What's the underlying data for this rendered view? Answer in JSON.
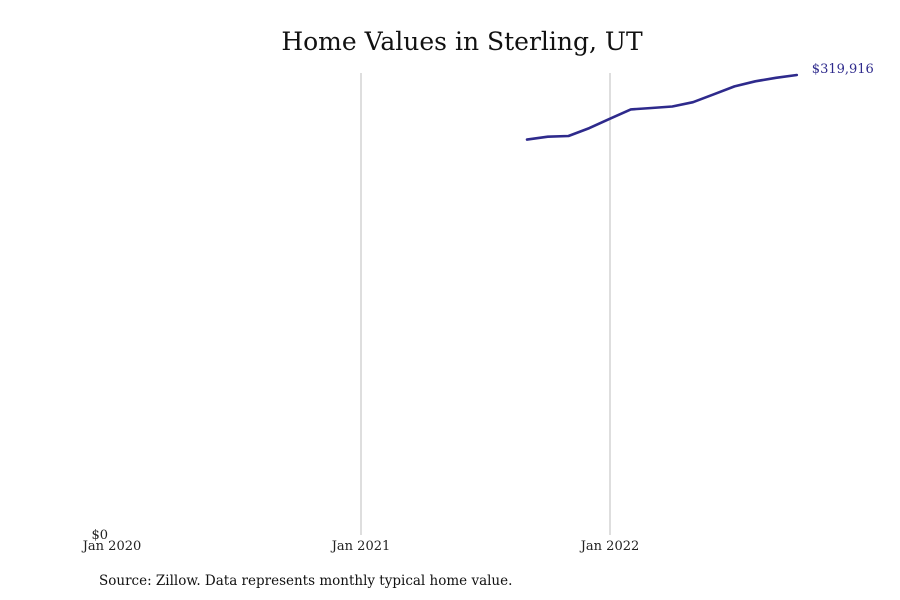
{
  "chart_data": {
    "type": "line",
    "title": "Home Values in Sterling, UT",
    "xlabel": "",
    "ylabel": "",
    "x_ticks": [
      "Jan 2020",
      "Jan 2021",
      "Jan 2022"
    ],
    "y_ticks": [
      "$0"
    ],
    "xlim": [
      "2020-01",
      "2022-12"
    ],
    "ylim": [
      0,
      319916
    ],
    "grid": "vertical at x ticks",
    "legend": "none",
    "series": [
      {
        "color": "#2e2a8c",
        "x": [
          "2021-09",
          "2021-10",
          "2021-11",
          "2021-12",
          "2022-01",
          "2022-02",
          "2022-03",
          "2022-04",
          "2022-05",
          "2022-06",
          "2022-07",
          "2022-08",
          "2022-09",
          "2022-10"
        ],
        "values": [
          275000,
          277000,
          277500,
          283000,
          289500,
          296000,
          297000,
          298000,
          301000,
          306500,
          312000,
          315500,
          318000,
          319916
        ]
      }
    ],
    "end_label": "$319,916",
    "source": "Source: Zillow. Data represents monthly typical home value."
  }
}
